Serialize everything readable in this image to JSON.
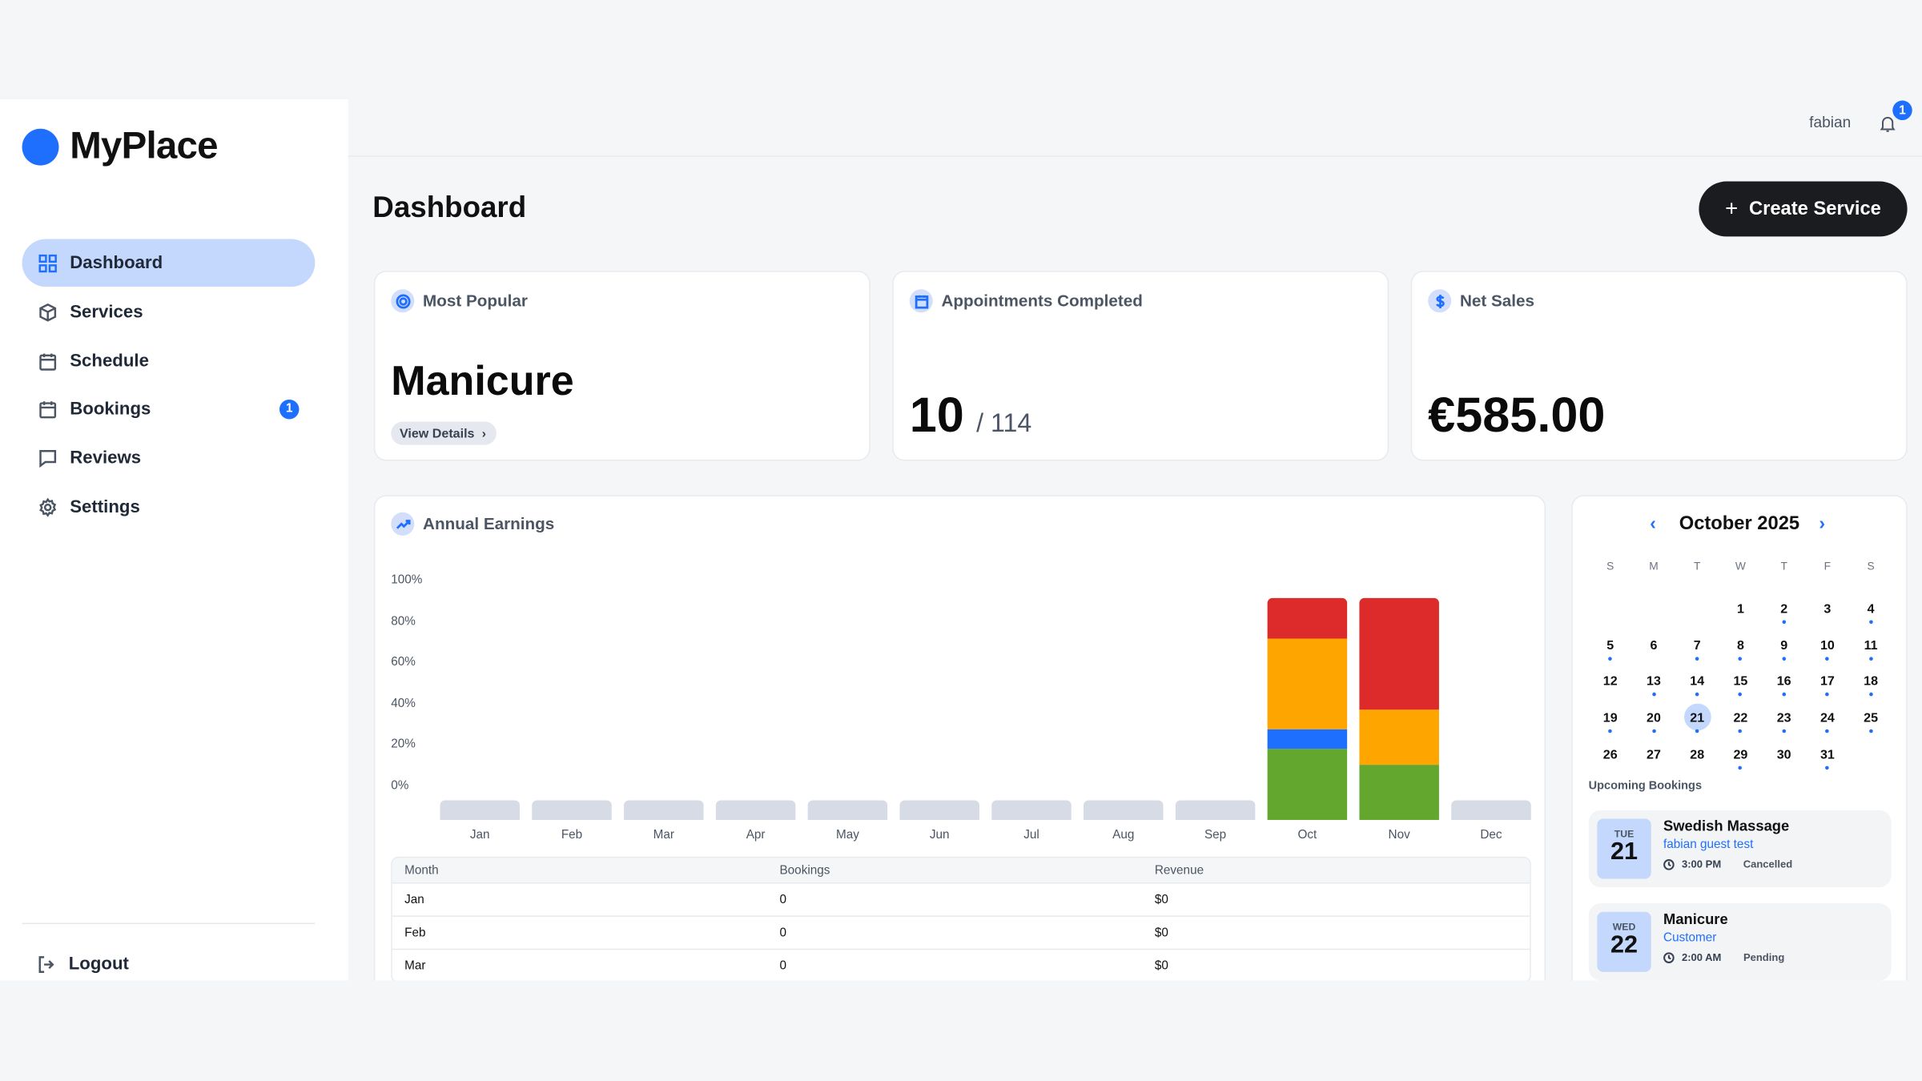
{
  "brand": {
    "name": "MyPlace",
    "color": "#1f6fff"
  },
  "sidebar": {
    "items": [
      {
        "label": "Dashboard",
        "icon": "grid-icon",
        "active": true
      },
      {
        "label": "Services",
        "icon": "box-icon"
      },
      {
        "label": "Schedule",
        "icon": "calendar-icon"
      },
      {
        "label": "Bookings",
        "icon": "calendar-icon",
        "badge": "1"
      },
      {
        "label": "Reviews",
        "icon": "message-icon"
      },
      {
        "label": "Settings",
        "icon": "gear-icon"
      }
    ],
    "logout": "Logout"
  },
  "header": {
    "user": "fabian",
    "notifications": "1"
  },
  "page": {
    "title": "Dashboard",
    "create_label": "Create Service"
  },
  "stats": {
    "popular": {
      "title": "Most Popular",
      "value": "Manicure",
      "link": "View Details"
    },
    "appointments": {
      "title": "Appointments Completed",
      "value": "10",
      "total": "/ 114"
    },
    "sales": {
      "title": "Net Sales",
      "value": "€585.00"
    }
  },
  "earnings": {
    "title": "Annual Earnings"
  },
  "chart_data": {
    "type": "bar",
    "stacked": true,
    "categories": [
      "Jan",
      "Feb",
      "Mar",
      "Apr",
      "May",
      "Jun",
      "Jul",
      "Aug",
      "Sep",
      "Oct",
      "Nov",
      "Dec"
    ],
    "yticks": [
      "100%",
      "80%",
      "60%",
      "40%",
      "20%",
      "0%"
    ],
    "series": [
      {
        "color": "#63a72f",
        "values": [
          0,
          0,
          0,
          0,
          0,
          0,
          0,
          0,
          0,
          32,
          25,
          0
        ]
      },
      {
        "color": "#1f6fff",
        "values": [
          0,
          0,
          0,
          0,
          0,
          0,
          0,
          0,
          0,
          9,
          0,
          0
        ]
      },
      {
        "color": "#fea500",
        "values": [
          0,
          0,
          0,
          0,
          0,
          0,
          0,
          0,
          0,
          41,
          25,
          0
        ]
      },
      {
        "color": "#dd2a2a",
        "values": [
          0,
          0,
          0,
          0,
          0,
          0,
          0,
          0,
          0,
          18,
          50,
          0
        ]
      }
    ],
    "placeholder_color": "#d6dbe6"
  },
  "table": {
    "headers": [
      "Month",
      "Bookings",
      "Revenue"
    ],
    "rows": [
      [
        "Jan",
        "0",
        "$0"
      ],
      [
        "Feb",
        "0",
        "$0"
      ],
      [
        "Mar",
        "0",
        "$0"
      ]
    ]
  },
  "calendar": {
    "title": "October 2025",
    "weekdays": [
      "S",
      "M",
      "T",
      "W",
      "T",
      "F",
      "S"
    ],
    "first_weekday": 3,
    "days": 31,
    "selected": 21,
    "booked_days": [
      2,
      4,
      5,
      7,
      8,
      9,
      10,
      11,
      13,
      14,
      15,
      16,
      17,
      18,
      19,
      20,
      21,
      22,
      23,
      24,
      25,
      29,
      31
    ]
  },
  "upcoming": {
    "title": "Upcoming Bookings",
    "items": [
      {
        "dow": "TUE",
        "day": "21",
        "service": "Swedish Massage",
        "customer": "fabian guest test",
        "time": "3:00 PM",
        "status": "Cancelled"
      },
      {
        "dow": "WED",
        "day": "22",
        "service": "Manicure",
        "customer": "Customer",
        "time": "2:00 AM",
        "status": "Pending"
      }
    ]
  }
}
